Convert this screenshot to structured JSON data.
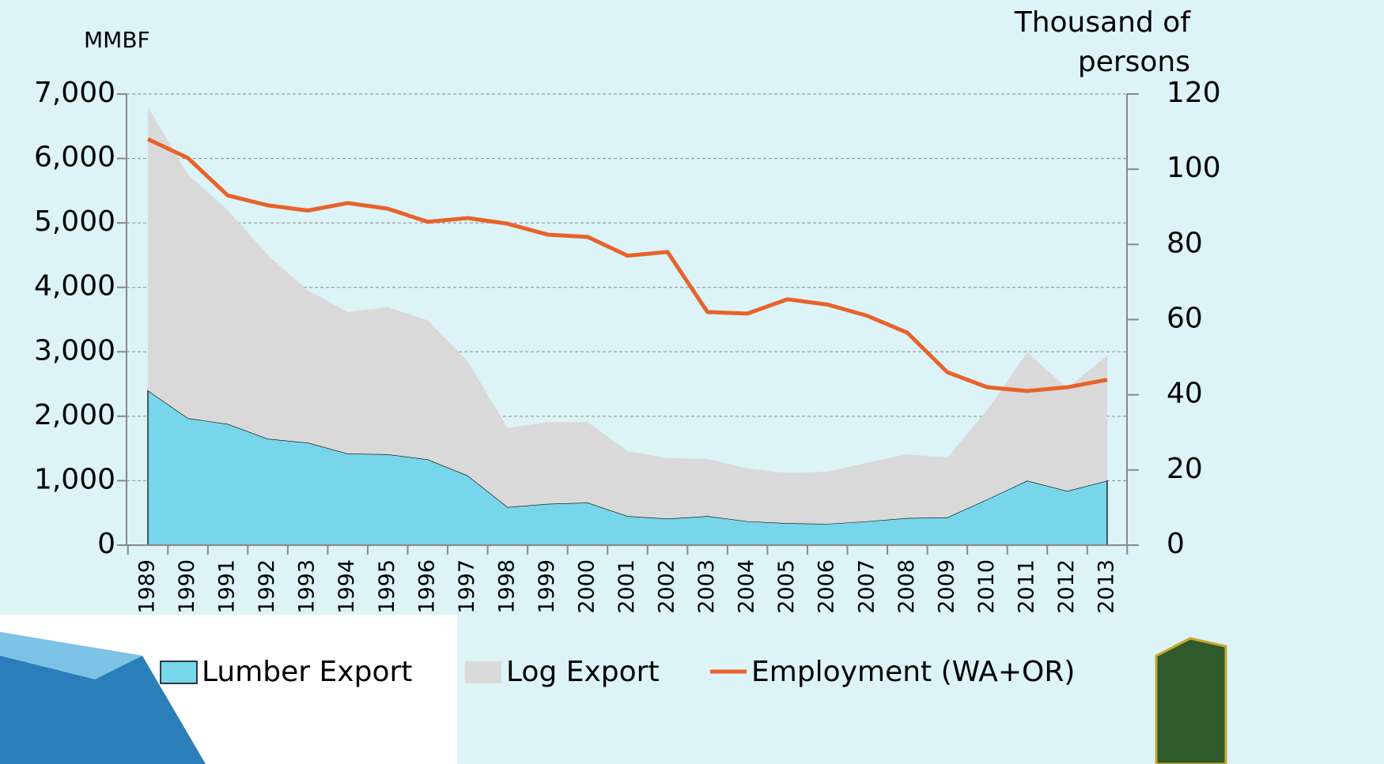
{
  "chart_data": {
    "type": "stacked-area-line",
    "y_label": "MMBF",
    "y2_label": "Thousand of persons",
    "categories": [
      "1989",
      "1990",
      "1991",
      "1992",
      "1993",
      "1994",
      "1995",
      "1996",
      "1997",
      "1998",
      "1999",
      "2000",
      "2001",
      "2002",
      "2003",
      "2004",
      "2005",
      "2006",
      "2007",
      "2008",
      "2009",
      "2010",
      "2011",
      "2012",
      "2013"
    ],
    "series": [
      {
        "name": "Lumber Export",
        "color": "#78d6ea",
        "kind": "area",
        "values": [
          2400,
          1970,
          1880,
          1650,
          1590,
          1420,
          1410,
          1330,
          1080,
          590,
          640,
          660,
          450,
          410,
          450,
          370,
          340,
          330,
          370,
          420,
          430,
          710,
          1000,
          840,
          1000
        ]
      },
      {
        "name": "Log Export",
        "color": "#d9d9d9",
        "kind": "area",
        "values": [
          4400,
          3780,
          3320,
          2850,
          2360,
          2200,
          2280,
          2160,
          1770,
          1230,
          1270,
          1250,
          1010,
          940,
          890,
          820,
          780,
          810,
          910,
          990,
          930,
          1390,
          1990,
          1600,
          1940
        ]
      },
      {
        "name": "Employment (WA+OR)",
        "color": "#e8622a",
        "kind": "line",
        "axis": "y2",
        "values": [
          108,
          103,
          93,
          90.4,
          89,
          91,
          89.5,
          86,
          87,
          85.5,
          82.6,
          82,
          77,
          78,
          62,
          61.6,
          65.4,
          64,
          61,
          56.5,
          46,
          42,
          41,
          42,
          44
        ]
      }
    ],
    "ylim": [
      0,
      7000
    ],
    "yticks": [
      0,
      {
        "value": 1000,
        "label": "1,000"
      },
      {
        "value": 2000,
        "label": "2,000"
      },
      {
        "value": 3000,
        "label": "3,000"
      },
      {
        "value": 4000,
        "label": "4,000"
      },
      {
        "value": 5000,
        "label": "5,000"
      },
      {
        "value": 6000,
        "label": "6,000"
      },
      {
        "value": 7000,
        "label": "7,000"
      }
    ],
    "y2lim": [
      0,
      120
    ],
    "y2ticks": [
      0,
      20,
      40,
      60,
      80,
      100,
      120
    ],
    "grid": true
  }
}
